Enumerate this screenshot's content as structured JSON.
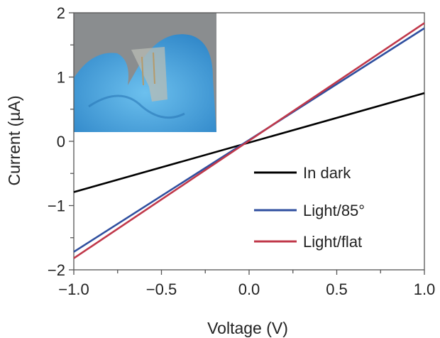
{
  "chart_data": {
    "type": "line",
    "xlabel": "Voltage (V)",
    "ylabel": "Current (µA)",
    "xlim": [
      -1.0,
      1.0
    ],
    "ylim": [
      -2,
      2
    ],
    "xticks": [
      -1.0,
      -0.5,
      0.0,
      0.5,
      1.0
    ],
    "xtick_labels": [
      "−1.0",
      "−0.5",
      "0.0",
      "0.5",
      "1.0"
    ],
    "yticks": [
      -2,
      -1,
      0,
      1,
      2
    ],
    "ytick_labels": [
      "−2",
      "−1",
      "0",
      "1",
      "2"
    ],
    "grid": false,
    "legend_placement": "bottom-right",
    "inset": "photo of flexible transparent device held between blue-gloved fingers (top-left)",
    "series": [
      {
        "name": "In dark",
        "color": "#000000",
        "x": [
          -1.0,
          1.0
        ],
        "y": [
          -0.79,
          0.75
        ]
      },
      {
        "name": "Light/85°",
        "color": "#2f4f9f",
        "x": [
          -1.0,
          1.0
        ],
        "y": [
          -1.72,
          1.76
        ]
      },
      {
        "name": "Light/flat",
        "color": "#c0384a",
        "x": [
          -1.0,
          1.0
        ],
        "y": [
          -1.82,
          1.84
        ]
      }
    ]
  }
}
